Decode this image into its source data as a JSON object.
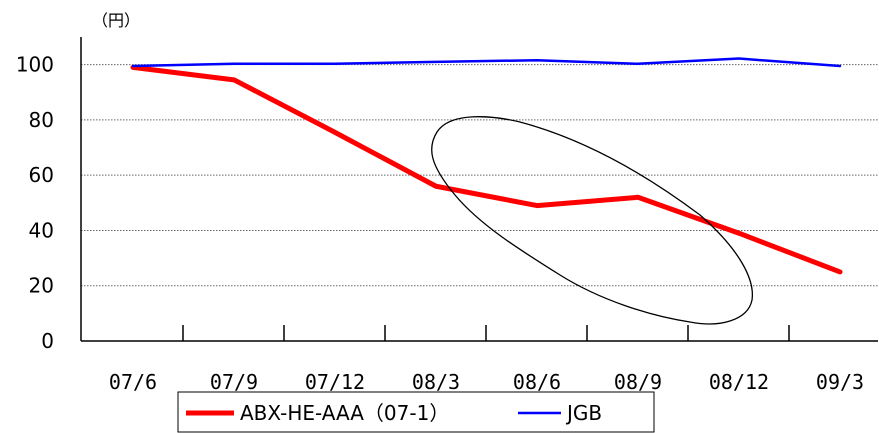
{
  "chart_data": {
    "type": "line",
    "unit_label": "（円）",
    "categories": [
      "07/6",
      "07/9",
      "07/12",
      "08/3",
      "08/6",
      "08/9",
      "08/12",
      "09/3"
    ],
    "ylim": [
      0,
      110
    ],
    "yticks": [
      0,
      20,
      40,
      60,
      80,
      100
    ],
    "grid": true,
    "legend_position": "bottom",
    "series": [
      {
        "name": "ABX-HE-AAA（07-1）",
        "color": "#ff0000",
        "points": [
          [
            0,
            99
          ],
          [
            1,
            94.5
          ],
          [
            2,
            75.5
          ],
          [
            3,
            56
          ],
          [
            4,
            49
          ],
          [
            5,
            52
          ],
          [
            6,
            39
          ],
          [
            7,
            25
          ]
        ]
      },
      {
        "name": "JGB",
        "color": "#0000ff",
        "points": [
          [
            0,
            99.5
          ],
          [
            1,
            100.3
          ],
          [
            2,
            100.3
          ],
          [
            3,
            101
          ],
          [
            4,
            101.6
          ],
          [
            5,
            100.3
          ],
          [
            6,
            102.2
          ],
          [
            7,
            99.5
          ]
        ]
      }
    ],
    "annotation": "hand-drawn ellipse around the 2008 divergence"
  }
}
